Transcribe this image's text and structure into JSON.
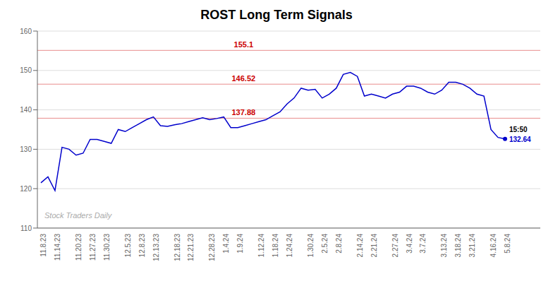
{
  "chart_data": {
    "type": "line",
    "title": "ROST Long Term Signals",
    "watermark": "Stock Traders Daily",
    "categories": [
      "11.8.23",
      null,
      "11.14.23",
      null,
      null,
      "11.20.23",
      null,
      "11.27.23",
      null,
      "11.30.23",
      null,
      null,
      "12.5.23",
      null,
      "12.8.23",
      null,
      "12.13.23",
      null,
      null,
      "12.18.23",
      null,
      "12.21.23",
      null,
      null,
      "12.28.23",
      null,
      "1.4.24",
      null,
      "1.9.24",
      null,
      null,
      "1.12.24",
      null,
      "1.18.24",
      null,
      "1.24.24",
      null,
      null,
      "1.30.24",
      null,
      "2.5.24",
      null,
      "2.8.24",
      null,
      null,
      "2.14.24",
      null,
      "2.21.24",
      null,
      null,
      "2.27.24",
      null,
      "3.4.24",
      null,
      "3.7.24",
      null,
      null,
      "3.13.24",
      null,
      "3.18.24",
      null,
      "3.21.24",
      null,
      null,
      "4.16.24",
      null,
      "5.8.24"
    ],
    "values": [
      121.5,
      123.0,
      119.5,
      130.5,
      130.0,
      128.5,
      129.0,
      132.5,
      132.5,
      132.0,
      131.5,
      135.0,
      134.5,
      135.5,
      136.5,
      137.5,
      138.2,
      136.0,
      135.8,
      136.2,
      136.5,
      137.0,
      137.5,
      138.0,
      137.5,
      137.8,
      138.2,
      135.5,
      135.5,
      136.0,
      136.5,
      137.0,
      137.5,
      138.5,
      139.5,
      141.5,
      143.0,
      145.5,
      145.0,
      145.2,
      143.0,
      144.0,
      145.5,
      149.0,
      149.5,
      148.5,
      143.5,
      144.0,
      143.5,
      143.0,
      144.0,
      144.5,
      146.0,
      146.0,
      145.5,
      144.5,
      144.0,
      145.0,
      147.0,
      147.0,
      146.5,
      145.5,
      144.0,
      143.5,
      135.0,
      133.0,
      132.64
    ],
    "color": "#0000cc",
    "last_label": "15:50",
    "last_value_label": "132.64",
    "reference_lines": [
      {
        "y": 155.1,
        "label": "155.1",
        "color": "#cc0000"
      },
      {
        "y": 146.52,
        "label": "146.52",
        "color": "#cc0000"
      },
      {
        "y": 137.88,
        "label": "137.88",
        "color": "#cc0000"
      }
    ],
    "ylim": [
      110,
      160
    ],
    "yticks": [
      110,
      120,
      130,
      140,
      150,
      160
    ],
    "grid": true
  }
}
